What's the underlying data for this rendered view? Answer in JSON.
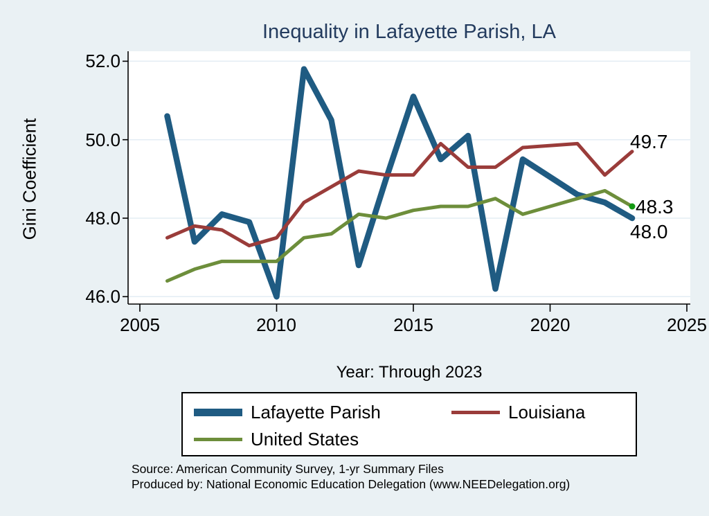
{
  "title": "Inequality in Lafayette Parish, LA",
  "colors": {
    "page_bg": "#eaf1f4",
    "plot_bg": "#ffffff",
    "grid": "#e3edf4",
    "axis": "#000000",
    "title_text": "#233b5e"
  },
  "footer": {
    "source_line": "Source: American Community Survey, 1-yr Summary Files",
    "produced_by_line": "Produced by: National Economic Education Delegation (www.NEEDelegation.org)"
  },
  "chart_data": {
    "type": "line",
    "title": "Inequality in Lafayette Parish, LA",
    "xlabel": "Year: Through 2023",
    "ylabel": "Gini Coefficient",
    "legend_position": "bottom",
    "grid": "horizontal",
    "xlim": [
      2004.6,
      2025.1
    ],
    "ylim": [
      45.8,
      52.3
    ],
    "x_ticks": [
      2005,
      2010,
      2015,
      2020,
      2025
    ],
    "y_ticks": [
      46.0,
      48.0,
      50.0,
      52.0
    ],
    "y_tick_labels_top_to_bottom": [
      "52.0",
      "50.0",
      "48.0",
      "46.0"
    ],
    "years": [
      2006,
      2007,
      2008,
      2009,
      2010,
      2011,
      2012,
      2013,
      2014,
      2015,
      2016,
      2017,
      2018,
      2019,
      2021,
      2022,
      2023
    ],
    "series": [
      {
        "name": "Lafayette Parish",
        "color": "#1f5b82",
        "line_width": 8.5,
        "values": [
          50.6,
          47.4,
          48.1,
          47.9,
          46.0,
          51.8,
          50.5,
          46.8,
          49.0,
          51.1,
          49.5,
          50.1,
          46.2,
          49.5,
          48.6,
          48.4,
          48.0
        ]
      },
      {
        "name": "Louisiana",
        "color": "#9a3c3a",
        "line_width": 5,
        "values": [
          47.5,
          47.8,
          47.7,
          47.3,
          47.5,
          48.4,
          48.8,
          49.2,
          49.1,
          49.1,
          49.9,
          49.3,
          49.3,
          49.8,
          49.9,
          49.1,
          49.7
        ]
      },
      {
        "name": "United States",
        "color": "#6d8e3b",
        "line_width": 5,
        "end_marker_color": "#149a14",
        "values": [
          46.4,
          46.7,
          46.9,
          46.9,
          46.9,
          47.5,
          47.6,
          48.1,
          48.0,
          48.2,
          48.3,
          48.3,
          48.5,
          48.1,
          48.5,
          48.7,
          48.3
        ]
      }
    ],
    "end_labels": [
      {
        "text": "49.7",
        "series": "Louisiana"
      },
      {
        "text": "48.3",
        "series": "United States"
      },
      {
        "text": "48.0",
        "series": "Lafayette Parish"
      }
    ]
  }
}
